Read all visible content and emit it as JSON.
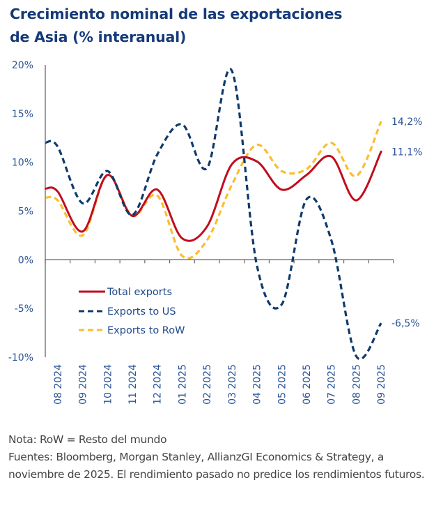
{
  "chart_data": {
    "type": "line",
    "title": "Crecimiento nominal de las exportaciones de Asia (% interanual)",
    "title_lines": [
      "Crecimiento nominal de las exportaciones",
      "de Asia (% interanual)"
    ],
    "xlabel": "",
    "ylabel": "",
    "ylim": [
      -10,
      20
    ],
    "yticks": [
      20,
      15,
      10,
      5,
      0,
      -5,
      -10
    ],
    "ytick_labels": [
      "20%",
      "15%",
      "10%",
      "5%",
      "0%",
      "-5%",
      "-10%"
    ],
    "grid": false,
    "legend_position": "lower-left",
    "categories": [
      "08 2024",
      "09 2024",
      "10 2024",
      "11 2024",
      "12 2024",
      "01 2025",
      "02 2025",
      "03 2025",
      "04 2025",
      "05 2025",
      "06 2025",
      "07 2025",
      "08 2025",
      "09 2025"
    ],
    "series": [
      {
        "name": "Total exports",
        "color": "#c00d1e",
        "style": "solid",
        "values": [
          7.0,
          2.9,
          8.7,
          4.5,
          7.2,
          2.2,
          3.4,
          9.8,
          10.1,
          7.2,
          8.7,
          10.6,
          6.1,
          11.1
        ],
        "end_label": "11,1%"
      },
      {
        "name": "Exports to US",
        "color": "#0f3a6b",
        "style": "dashed",
        "values": [
          11.6,
          5.8,
          9.1,
          4.6,
          10.8,
          13.9,
          9.4,
          19.4,
          -0.5,
          -4.6,
          6.2,
          2.0,
          -9.9,
          -6.5
        ],
        "end_label": "-6,5%"
      },
      {
        "name": "Exports to RoW",
        "color": "#fbbd2e",
        "style": "dashed",
        "values": [
          6.1,
          2.5,
          8.7,
          4.5,
          6.6,
          0.4,
          2.0,
          7.7,
          11.8,
          9.1,
          9.3,
          12.0,
          8.6,
          14.2
        ],
        "end_label": "14,2%"
      }
    ]
  },
  "notes": {
    "note": "Nota: RoW = Resto del mundo",
    "sources": "Fuentes: Bloomberg, Morgan Stanley, AllianzGI Economics & Strategy, a noviembre de 2025. El rendimiento pasado no predice los rendimientos futuros."
  },
  "colors": {
    "title": "#153a78",
    "axis_text": "#2a5496",
    "axis_line": "#666666"
  }
}
